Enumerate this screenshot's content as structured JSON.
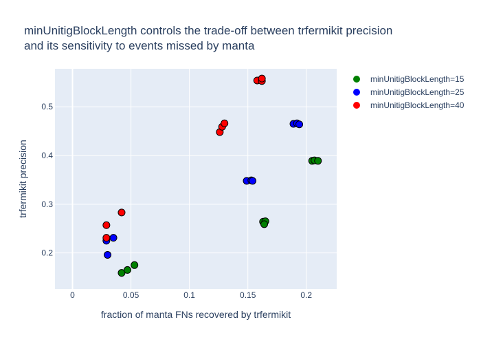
{
  "chart_data": {
    "type": "scatter",
    "title": [
      "minUnitigBlockLength controls the trade-off between trfermikit precision",
      "and its sensitivity to events missed by manta"
    ],
    "xlabel": "fraction of manta FNs recovered by trfermikit",
    "ylabel": "trfermikit precision",
    "xlim": [
      -0.015,
      0.226
    ],
    "ylim": [
      0.126,
      0.578
    ],
    "x_ticks": [
      0,
      0.05,
      0.1,
      0.15,
      0.2
    ],
    "x_tick_labels": [
      "0",
      "0.05",
      "0.1",
      "0.15",
      "0.2"
    ],
    "y_ticks": [
      0.2,
      0.3,
      0.4,
      0.5
    ],
    "y_tick_labels": [
      "0.2",
      "0.3",
      "0.4",
      "0.5"
    ],
    "grid": true,
    "legend_position": "top-right",
    "series": [
      {
        "name": "minUnitigBlockLength=15",
        "color": "#008000",
        "points": [
          {
            "x": 0.042,
            "y": 0.159
          },
          {
            "x": 0.047,
            "y": 0.165
          },
          {
            "x": 0.053,
            "y": 0.175
          },
          {
            "x": 0.163,
            "y": 0.264
          },
          {
            "x": 0.165,
            "y": 0.265
          },
          {
            "x": 0.164,
            "y": 0.259
          },
          {
            "x": 0.205,
            "y": 0.389
          },
          {
            "x": 0.207,
            "y": 0.39
          },
          {
            "x": 0.21,
            "y": 0.389
          }
        ]
      },
      {
        "name": "minUnitigBlockLength=25",
        "color": "#0000ff",
        "points": [
          {
            "x": 0.03,
            "y": 0.196
          },
          {
            "x": 0.029,
            "y": 0.225
          },
          {
            "x": 0.035,
            "y": 0.231
          },
          {
            "x": 0.149,
            "y": 0.348
          },
          {
            "x": 0.153,
            "y": 0.349
          },
          {
            "x": 0.154,
            "y": 0.348
          },
          {
            "x": 0.189,
            "y": 0.465
          },
          {
            "x": 0.192,
            "y": 0.466
          },
          {
            "x": 0.194,
            "y": 0.464
          }
        ]
      },
      {
        "name": "minUnitigBlockLength=40",
        "color": "#ff0000",
        "points": [
          {
            "x": 0.029,
            "y": 0.257
          },
          {
            "x": 0.029,
            "y": 0.231
          },
          {
            "x": 0.042,
            "y": 0.283
          },
          {
            "x": 0.126,
            "y": 0.448
          },
          {
            "x": 0.128,
            "y": 0.459
          },
          {
            "x": 0.13,
            "y": 0.466
          },
          {
            "x": 0.158,
            "y": 0.554
          },
          {
            "x": 0.162,
            "y": 0.553
          },
          {
            "x": 0.162,
            "y": 0.558
          }
        ]
      }
    ]
  }
}
